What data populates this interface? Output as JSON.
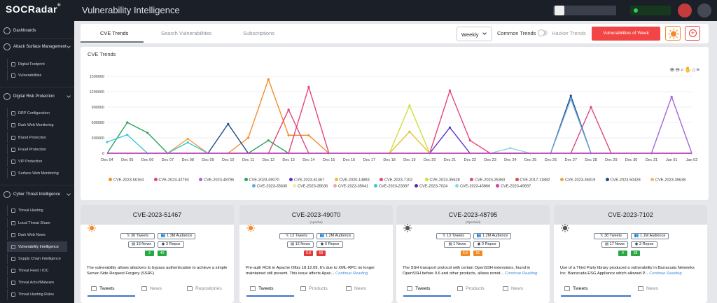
{
  "app": {
    "logo": "SOCRadar",
    "logo_reg": "®",
    "title": "Vulnerability Intelligence"
  },
  "sidebar": {
    "dashboards": "Dashboards",
    "attack_surface": "Attack Surface Management",
    "asm_items": [
      "Digital Footprint",
      "Vulnerabilities"
    ],
    "digital_risk": "Digital Risk Protection",
    "drp_items": [
      "DRP Configuration",
      "Dark Web Monitoring",
      "Brand Protection",
      "Fraud Protection",
      "VIP Protection",
      "Surface Web Monitoring"
    ],
    "cti": "Cyber Threat Intelligence",
    "cti_items": [
      "Threat Hunting",
      "Local Threat Share",
      "Dark Web News",
      "Vulnerability Intelligence",
      "Supply Chain Intelligence",
      "Threat Feed / IOC",
      "Threat Actor/Malware",
      "Threat Hunting Rules"
    ]
  },
  "tabs": [
    "CVE Trends",
    "Search Vulnerabilities",
    "Subscriptions"
  ],
  "controls": {
    "period": "Weekly",
    "common_trends": "Common Trends",
    "hacker_trends": "Hacker Trends",
    "vulns_of_week": "Vulnerabilities of Week"
  },
  "chart_title": "CVE Trends",
  "chart_data": {
    "type": "line",
    "x": [
      "Dec 04",
      "Dec 05",
      "Dec 06",
      "Dec 07",
      "Dec 08",
      "Dec 09",
      "Dec 10",
      "Dec 11",
      "Dec 12",
      "Dec 13",
      "Dec 14",
      "Dec 15",
      "Dec 16",
      "Dec 17",
      "Dec 18",
      "Dec 19",
      "Dec 20",
      "Dec 21",
      "Dec 22",
      "Dec 23",
      "Dec 24",
      "Dec 25",
      "Dec 26",
      "Dec 27",
      "Dec 28",
      "Dec 29",
      "Dec 30",
      "Dec 31",
      "Jan 01",
      "Jan 02"
    ],
    "y_ticks": [
      "0",
      "300000",
      "600000",
      "900000",
      "1200000",
      "1500000"
    ],
    "ylim": [
      0,
      1500000
    ],
    "series": [
      {
        "name": "CVE-2023-50164",
        "color": "#f28e2b",
        "values": [
          0,
          0,
          0,
          0,
          0,
          0,
          0,
          300000,
          1440000,
          350000,
          350000,
          0,
          0,
          0,
          0,
          0,
          0,
          0,
          0,
          0,
          0,
          0,
          0,
          0,
          0,
          0,
          0,
          0,
          0,
          0
        ]
      },
      {
        "name": "CVE-2023-42793",
        "color": "#e0457b",
        "values": [
          0,
          0,
          0,
          0,
          0,
          0,
          0,
          0,
          0,
          850000,
          0,
          0,
          0,
          0,
          0,
          0,
          0,
          0,
          0,
          0,
          0,
          0,
          0,
          0,
          0,
          0,
          0,
          0,
          0,
          0
        ]
      },
      {
        "name": "CVE-2023-48795",
        "color": "#a466d8",
        "values": [
          0,
          0,
          0,
          0,
          0,
          0,
          0,
          0,
          0,
          0,
          0,
          0,
          0,
          0,
          0,
          0,
          0,
          0,
          0,
          0,
          0,
          0,
          0,
          0,
          0,
          0,
          0,
          0,
          1100000,
          0
        ]
      },
      {
        "name": "CVE-2023-49070",
        "color": "#2ca25f",
        "values": [
          0,
          600000,
          400000,
          0,
          0,
          0,
          0,
          0,
          250000,
          0,
          0,
          0,
          0,
          0,
          0,
          0,
          0,
          0,
          0,
          0,
          0,
          0,
          0,
          0,
          0,
          0,
          0,
          0,
          0,
          0
        ]
      },
      {
        "name": "CVE-2023-51467",
        "color": "#5b2fd1",
        "values": [
          0,
          0,
          0,
          0,
          0,
          0,
          0,
          0,
          0,
          0,
          0,
          0,
          0,
          0,
          0,
          0,
          0,
          500000,
          0,
          0,
          0,
          0,
          0,
          0,
          0,
          0,
          0,
          0,
          0,
          0
        ]
      },
      {
        "name": "CVE-2020-14883",
        "color": "#e6c229",
        "values": [
          0,
          0,
          0,
          0,
          0,
          0,
          0,
          0,
          0,
          0,
          0,
          0,
          0,
          0,
          0,
          420000,
          0,
          0,
          0,
          0,
          0,
          0,
          0,
          0,
          0,
          0,
          0,
          0,
          0,
          0
        ]
      },
      {
        "name": "CVE-2023-7102",
        "color": "#e8457b",
        "values": [
          0,
          0,
          0,
          0,
          0,
          0,
          0,
          0,
          0,
          0,
          1290000,
          0,
          0,
          0,
          0,
          0,
          0,
          1220000,
          250000,
          0,
          0,
          0,
          0,
          0,
          0,
          0,
          0,
          0,
          0,
          0
        ]
      },
      {
        "name": "CVE-2023-35628",
        "color": "#d0de3c",
        "values": [
          0,
          0,
          0,
          0,
          0,
          0,
          0,
          0,
          0,
          0,
          0,
          0,
          0,
          0,
          0,
          930000,
          0,
          0,
          0,
          0,
          0,
          0,
          0,
          0,
          0,
          0,
          0,
          0,
          0,
          0
        ]
      },
      {
        "name": "CVE-2023-26360",
        "color": "#d9487e",
        "values": [
          0,
          0,
          0,
          0,
          0,
          0,
          0,
          0,
          0,
          0,
          0,
          0,
          0,
          0,
          0,
          0,
          0,
          0,
          0,
          0,
          0,
          0,
          0,
          0,
          900000,
          0,
          0,
          0,
          0,
          0
        ]
      },
      {
        "name": "CVE-2017-11882",
        "color": "#e24a4a",
        "values": [
          0,
          0,
          0,
          0,
          0,
          0,
          0,
          0,
          0,
          0,
          0,
          0,
          0,
          0,
          0,
          0,
          0,
          0,
          0,
          0,
          0,
          0,
          0,
          0,
          0,
          0,
          0,
          0,
          0,
          0
        ]
      },
      {
        "name": "CVE-2023-36019",
        "color": "#f2a144",
        "values": [
          0,
          0,
          0,
          0,
          280000,
          0,
          0,
          0,
          0,
          0,
          0,
          0,
          0,
          0,
          0,
          0,
          0,
          0,
          0,
          0,
          0,
          0,
          0,
          0,
          0,
          0,
          0,
          0,
          0,
          0
        ]
      },
      {
        "name": "CVE-2023-50428",
        "color": "#1f4e8c",
        "values": [
          0,
          0,
          0,
          0,
          0,
          0,
          570000,
          0,
          0,
          0,
          0,
          0,
          0,
          0,
          0,
          0,
          0,
          0,
          0,
          0,
          0,
          0,
          0,
          1120000,
          0,
          0,
          0,
          0,
          0,
          0
        ]
      },
      {
        "name": "CVE-2023-35638",
        "color": "#f6b26b",
        "values": [
          0,
          0,
          0,
          0,
          0,
          0,
          0,
          0,
          0,
          0,
          0,
          0,
          0,
          0,
          0,
          0,
          0,
          0,
          0,
          0,
          0,
          0,
          0,
          0,
          0,
          0,
          0,
          0,
          0,
          0
        ]
      },
      {
        "name": "CVE-2023-35630",
        "color": "#6fa8dc",
        "values": [
          0,
          0,
          0,
          0,
          0,
          0,
          0,
          0,
          0,
          0,
          0,
          0,
          0,
          0,
          0,
          0,
          0,
          0,
          0,
          0,
          0,
          0,
          0,
          1060000,
          0,
          0,
          0,
          0,
          0,
          0
        ]
      },
      {
        "name": "CVE-2023-35636",
        "color": "#f5e99a",
        "values": [
          0,
          0,
          0,
          0,
          0,
          0,
          0,
          0,
          0,
          0,
          0,
          0,
          0,
          0,
          0,
          0,
          0,
          0,
          0,
          0,
          0,
          0,
          0,
          0,
          0,
          0,
          0,
          0,
          0,
          0
        ]
      },
      {
        "name": "CVE-2023-35641",
        "color": "#f2a0c0",
        "values": [
          0,
          0,
          0,
          0,
          0,
          0,
          0,
          0,
          0,
          0,
          0,
          0,
          0,
          0,
          0,
          0,
          0,
          0,
          0,
          0,
          0,
          0,
          0,
          0,
          0,
          0,
          0,
          0,
          0,
          0
        ]
      },
      {
        "name": "CVE-2023-23397",
        "color": "#3cc8d8",
        "values": [
          220000,
          360000,
          0,
          0,
          210000,
          0,
          0,
          0,
          0,
          0,
          0,
          0,
          0,
          0,
          0,
          0,
          0,
          0,
          0,
          0,
          0,
          0,
          0,
          0,
          0,
          0,
          0,
          0,
          0,
          0
        ]
      },
      {
        "name": "CVE-2023-7024",
        "color": "#6a1fb5",
        "values": [
          0,
          0,
          0,
          0,
          0,
          0,
          0,
          0,
          0,
          0,
          0,
          0,
          0,
          0,
          0,
          0,
          0,
          0,
          0,
          0,
          0,
          0,
          0,
          0,
          0,
          0,
          0,
          0,
          0,
          0
        ]
      },
      {
        "name": "CVE-2023-45866",
        "color": "#8fd3e8",
        "values": [
          0,
          0,
          0,
          0,
          0,
          0,
          0,
          0,
          0,
          0,
          0,
          0,
          0,
          0,
          0,
          0,
          0,
          0,
          0,
          0,
          100000,
          0,
          0,
          0,
          0,
          0,
          0,
          0,
          0,
          0
        ]
      },
      {
        "name": "CVE-2023-49897",
        "color": "#d23fb0",
        "values": [
          0,
          0,
          0,
          0,
          0,
          0,
          0,
          0,
          0,
          0,
          0,
          0,
          0,
          0,
          0,
          0,
          0,
          0,
          0,
          0,
          0,
          0,
          0,
          0,
          0,
          0,
          0,
          0,
          0,
          0
        ]
      }
    ]
  },
  "cards": [
    {
      "title": "CVE-2023-51467",
      "sub": "",
      "tweets": "30 Tweets",
      "audience": "1.3M Audience",
      "news": "13 News",
      "repos": "3 Repos",
      "badges": [
        "2",
        "40"
      ],
      "badge_colors": [
        "#27a843",
        "#27a843"
      ],
      "desc": "The vulnerability allows attackers to bypass authentication to achieve a simple Server-Side Request Forgery (SSRF)",
      "more": "",
      "tabs": [
        "Tweets",
        "News",
        "Repositories"
      ]
    },
    {
      "title": "CVE-2023-49070",
      "sub": "(Apache)",
      "tweets": "13 Tweets",
      "audience": "1.2M Audience",
      "news": "12 News",
      "repos": "0 Repos",
      "badges": [
        "9.8",
        "59"
      ],
      "badge_colors": [
        "#e03a3a",
        "#e03a3a"
      ],
      "desc": "Pre-auth RCE in Apache Ofbiz 18.12.09. It's due to XML-RPC no longer maintained still present. This issue affects Apac...",
      "more": "Continue Reading",
      "tabs": [
        "Tweets",
        "Products",
        "News"
      ]
    },
    {
      "title": "CVE-2023-48795",
      "sub": "(Openbsd)",
      "tweets": "13 Tweets",
      "audience": "1.2M Audience",
      "news": "1 News",
      "repos": "0 Repos",
      "badges": [
        "5.9",
        "51"
      ],
      "badge_colors": [
        "#f08a24",
        "#f08a24"
      ],
      "desc": "The SSH transport protocol with certain OpenSSH extensions, found in OpenSSH before 9.6 and other products, allows remot...",
      "more": "Continue Reading",
      "tabs": [
        "Tweets",
        "Products",
        "News"
      ]
    },
    {
      "title": "CVE-2023-7102",
      "sub": "",
      "tweets": "38 Tweets",
      "audience": "1.1M Audience",
      "news": "17 News",
      "repos": "3 Repos",
      "badges": [
        "0",
        "38"
      ],
      "badge_colors": [
        "#27a843",
        "#27a843"
      ],
      "desc": "Use of a Third Party library produced a vulnerability in Barracuda Networks Inc. Barracuda ESG Appliance which allowed P...",
      "more": "Continue Reading",
      "tabs": [
        "Tweets",
        "News"
      ]
    }
  ]
}
